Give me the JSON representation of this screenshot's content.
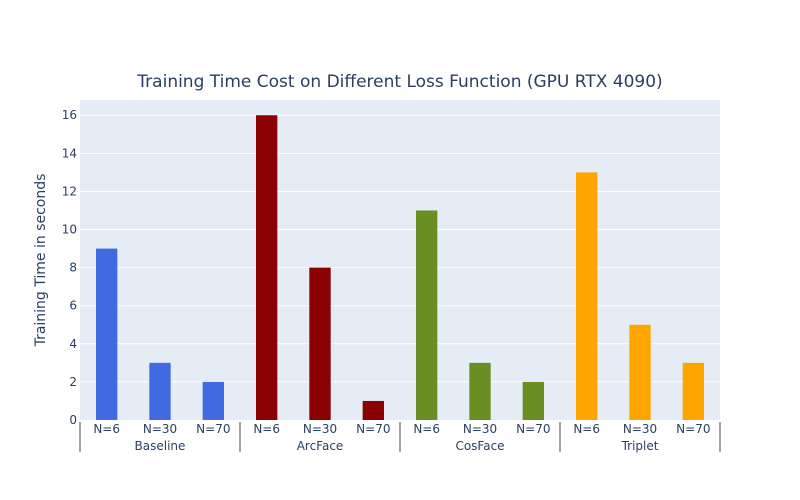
{
  "chart_data": {
    "type": "bar",
    "title": "Training Time Cost on Different Loss Function (GPU RTX 4090)",
    "xlabel": "",
    "ylabel": "Training Time in seconds",
    "ylim": [
      0,
      16.8
    ],
    "yticks": [
      0,
      2,
      4,
      6,
      8,
      10,
      12,
      14,
      16
    ],
    "grid": true,
    "legend": "none",
    "groups": [
      {
        "name": "Baseline",
        "color": "#4169e1",
        "categories": [
          "N=6",
          "N=30",
          "N=70"
        ],
        "values": [
          9,
          3,
          2
        ]
      },
      {
        "name": "ArcFace",
        "color": "#8b0000",
        "categories": [
          "N=6",
          "N=30",
          "N=70"
        ],
        "values": [
          16,
          8,
          1
        ]
      },
      {
        "name": "CosFace",
        "color": "#6b8e23",
        "categories": [
          "N=6",
          "N=30",
          "N=70"
        ],
        "values": [
          11,
          3,
          2
        ]
      },
      {
        "name": "Triplet",
        "color": "#ffa500",
        "categories": [
          "N=6",
          "N=30",
          "N=70"
        ],
        "values": [
          13,
          5,
          3
        ]
      }
    ]
  }
}
